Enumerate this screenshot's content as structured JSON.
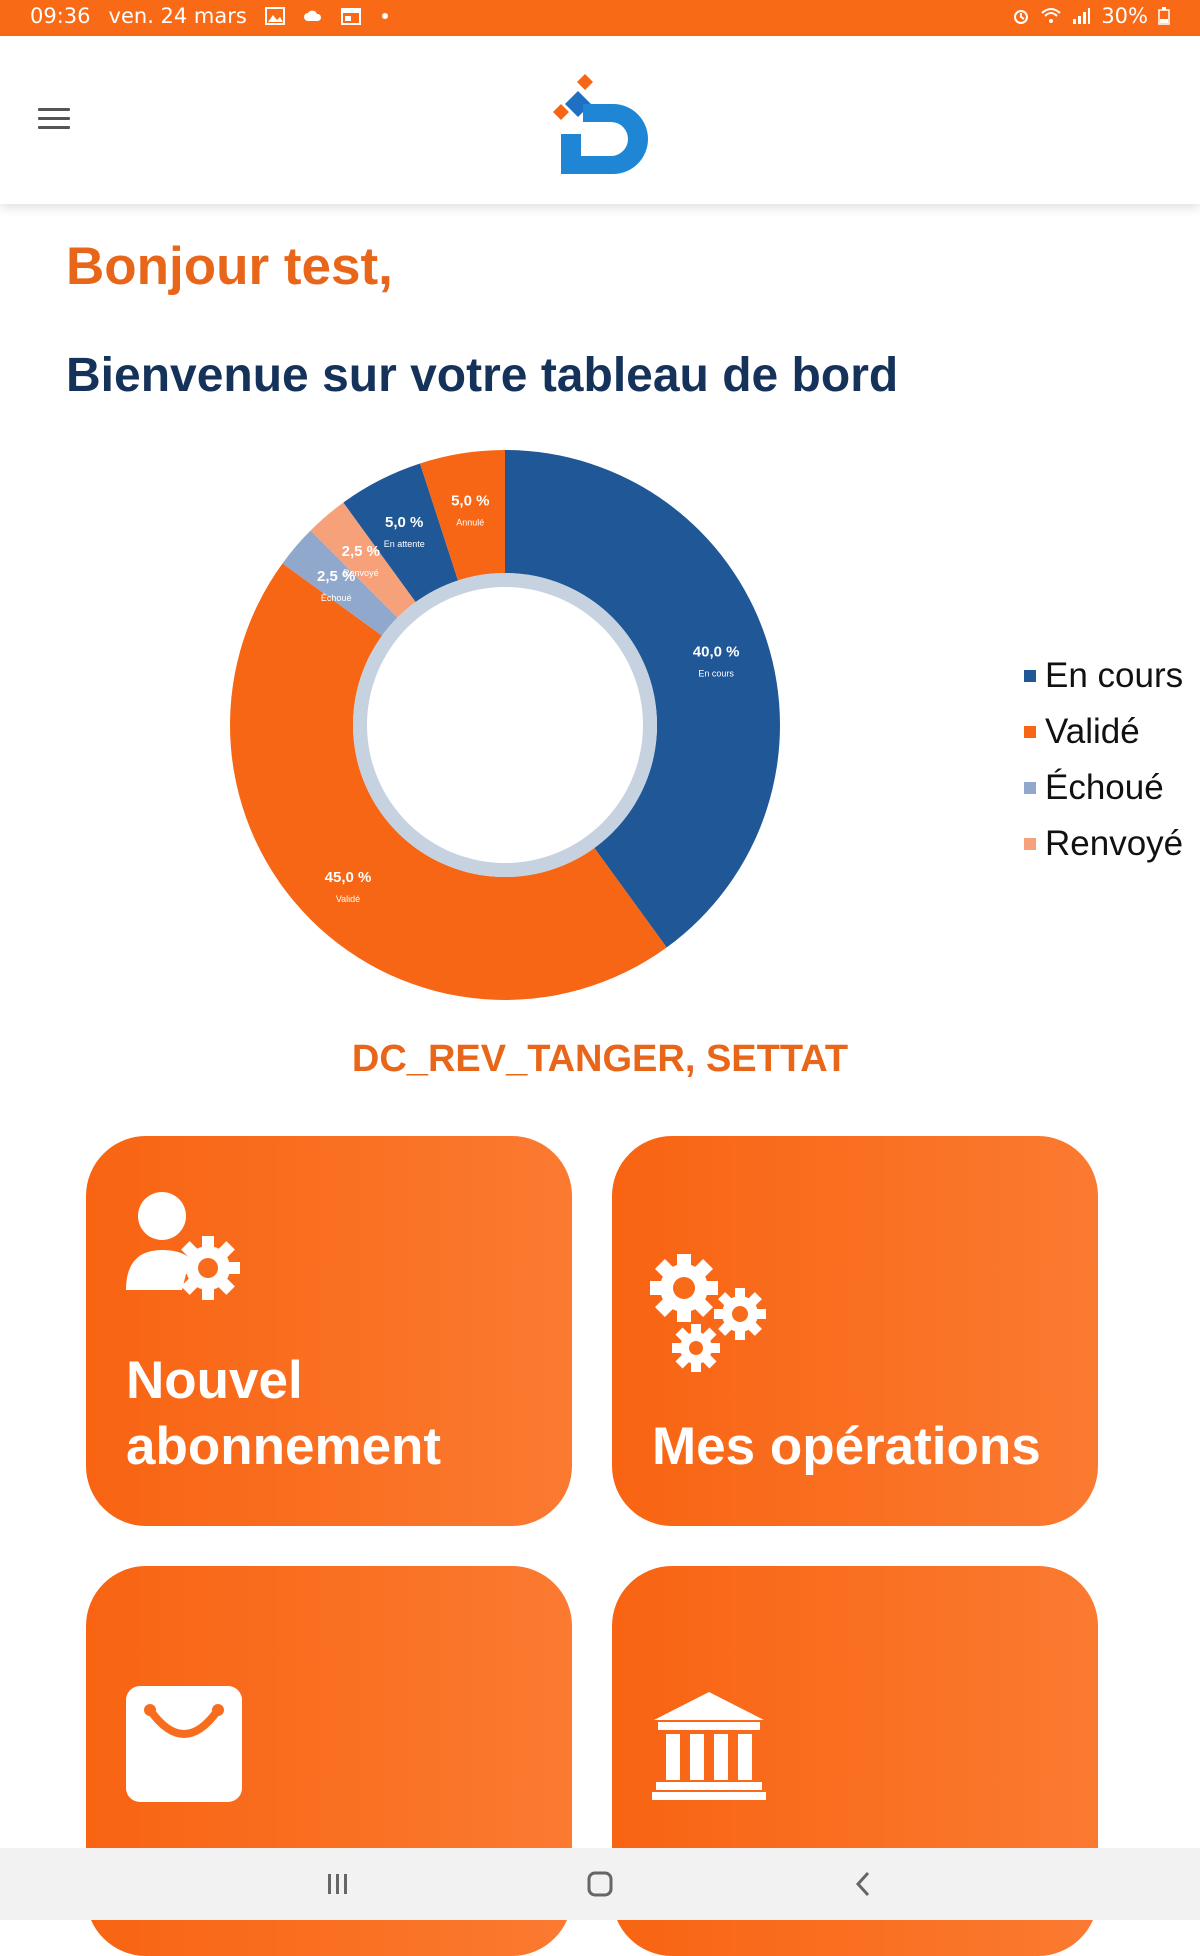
{
  "status_bar": {
    "time": "09:36",
    "date": "ven. 24 mars",
    "battery": "30%",
    "icons": [
      "image-icon",
      "cloud-icon",
      "calendar-icon",
      "dot-icon",
      "alarm-icon",
      "wifi-icon",
      "signal-icon",
      "battery-icon"
    ]
  },
  "header": {
    "menu_icon": "hamburger-menu-icon",
    "logo_icon": "d-logo-icon"
  },
  "greeting": "Bonjour test,",
  "welcome": "Bienvenue sur votre tableau de bord",
  "chart_data": {
    "type": "pie",
    "variant": "donut",
    "slices": [
      {
        "value_label": "40,0 %",
        "name": "En cours",
        "value": 40.0,
        "color": "#1f5797"
      },
      {
        "value_label": "45,0 %",
        "name": "Validé",
        "value": 45.0,
        "color": "#f76615"
      },
      {
        "value_label": "2,5 %",
        "name": "Échoué",
        "value": 2.5,
        "color": "#8fa8cc"
      },
      {
        "value_label": "2,5 %",
        "name": "Renvoyé",
        "value": 2.5,
        "color": "#f7a17a"
      },
      {
        "value_label": "5,0 %",
        "name": "En attente",
        "value": 5.0,
        "color": "#1f5797"
      },
      {
        "value_label": "5,0 %",
        "name": "Annulé",
        "value": 5.0,
        "color": "#f76615"
      }
    ],
    "legend": [
      {
        "label": "En cours",
        "color": "#1f5797"
      },
      {
        "label": "Validé",
        "color": "#f76615"
      },
      {
        "label": "Échoué",
        "color": "#8fa8cc"
      },
      {
        "label": "Renvoyé",
        "color": "#f7a17a"
      }
    ],
    "legend_position": "right"
  },
  "region": "DC_REV_TANGER, SETTAT",
  "cards": [
    {
      "label_line1": "Nouvel",
      "label_line2": "abonnement",
      "icon": "user-gear-icon"
    },
    {
      "label": "Mes opérations",
      "icon": "gears-icon"
    },
    {
      "label": "",
      "icon": "shopping-bag-icon"
    },
    {
      "label": "",
      "icon": "bank-icon"
    }
  ],
  "nav": {
    "recent_icon": "recent-apps-icon",
    "home_icon": "home-icon",
    "back_icon": "back-icon"
  },
  "colors": {
    "accent": "#f96a16",
    "navy": "#15325a",
    "blue": "#1f5797"
  }
}
